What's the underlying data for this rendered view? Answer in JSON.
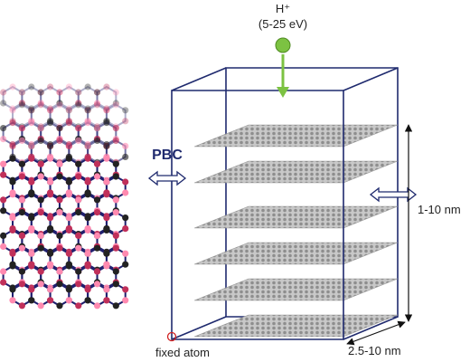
{
  "proton": {
    "label": "H⁺",
    "energy": "(5-25 eV)"
  },
  "boundary": "PBC",
  "height": "1-10 nm",
  "width": "2.5-10 nm",
  "fixed": "fixed atom"
}
